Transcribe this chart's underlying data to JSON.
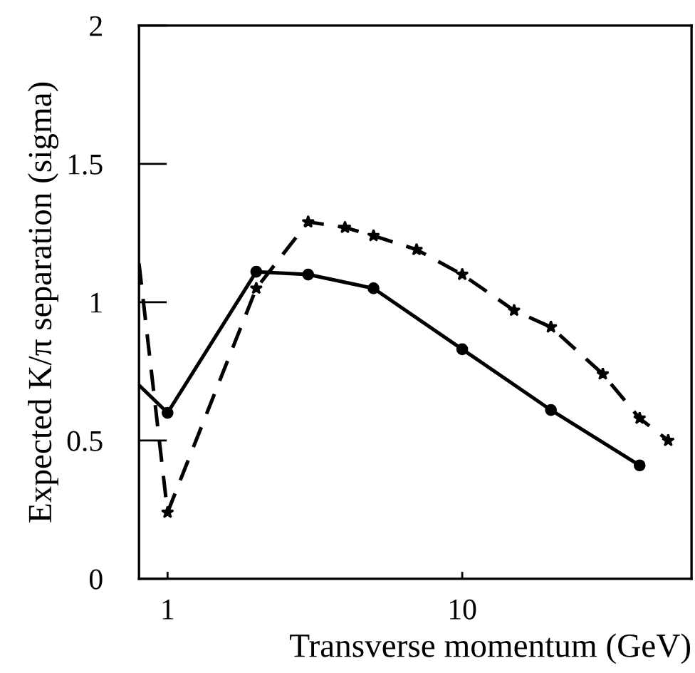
{
  "chart_data": {
    "type": "line",
    "xlabel": "Transverse momentum (GeV)",
    "ylabel": "Expected K/π separation (sigma)",
    "log": "x",
    "xlim": [
      0.8,
      60
    ],
    "ylim": [
      0,
      2
    ],
    "xticks": [
      1,
      10
    ],
    "yticks": [
      0,
      0.5,
      1,
      1.5,
      2
    ],
    "grid": false,
    "legend": false,
    "series": [
      {
        "color": "#000000",
        "marker": "circle",
        "line_style": "solid",
        "x": [
          0.8,
          1,
          2,
          3,
          5,
          10,
          20,
          40
        ],
        "values": [
          0.7,
          0.6,
          1.11,
          1.1,
          1.05,
          0.83,
          0.61,
          0.41
        ]
      },
      {
        "color": "#000000",
        "marker": "star",
        "line_style": "dashed",
        "x": [
          0.8,
          1,
          2,
          3,
          4,
          5,
          7,
          10,
          15,
          20,
          30,
          40,
          50
        ],
        "values": [
          1.14,
          0.24,
          1.05,
          1.29,
          1.27,
          1.24,
          1.19,
          1.1,
          0.97,
          0.91,
          0.74,
          0.58,
          0.5
        ]
      }
    ]
  }
}
